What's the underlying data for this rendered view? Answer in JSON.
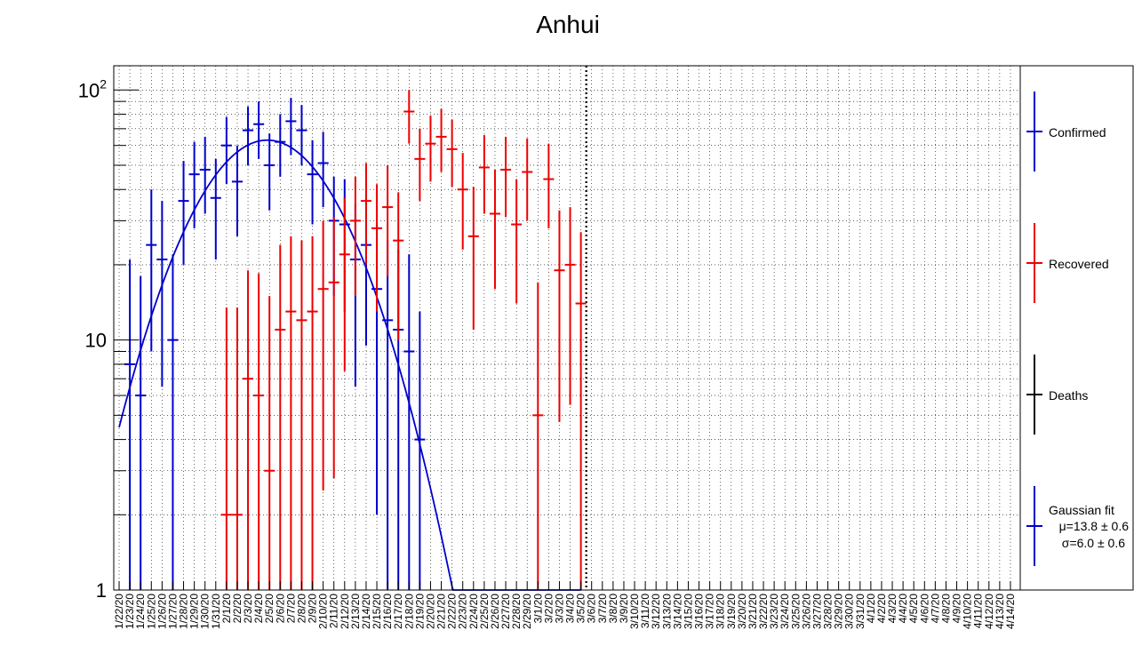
{
  "chart_data": {
    "type": "scatter",
    "title": "Anhui",
    "xlabel": "",
    "ylabel": "",
    "yscale": "log",
    "ylim": [
      1,
      125
    ],
    "y_ticks": [
      1,
      10,
      100
    ],
    "y_tick_labels": [
      "1",
      "10",
      "10^2"
    ],
    "grid": true,
    "legend_position": "right",
    "x_categories": [
      "1/22/20",
      "1/23/20",
      "1/24/20",
      "1/25/20",
      "1/26/20",
      "1/27/20",
      "1/28/20",
      "1/29/20",
      "1/30/20",
      "1/31/20",
      "2/1/20",
      "2/2/20",
      "2/3/20",
      "2/4/20",
      "2/5/20",
      "2/6/20",
      "2/7/20",
      "2/8/20",
      "2/9/20",
      "2/10/20",
      "2/11/20",
      "2/12/20",
      "2/13/20",
      "2/14/20",
      "2/15/20",
      "2/16/20",
      "2/17/20",
      "2/18/20",
      "2/19/20",
      "2/20/20",
      "2/21/20",
      "2/22/20",
      "2/23/20",
      "2/24/20",
      "2/25/20",
      "2/26/20",
      "2/27/20",
      "2/28/20",
      "2/29/20",
      "3/1/20",
      "3/2/20",
      "3/3/20",
      "3/4/20",
      "3/5/20",
      "3/6/20",
      "3/7/20",
      "3/8/20",
      "3/9/20",
      "3/10/20",
      "3/11/20",
      "3/12/20",
      "3/13/20",
      "3/14/20",
      "3/15/20",
      "3/16/20",
      "3/17/20",
      "3/18/20",
      "3/19/20",
      "3/20/20",
      "3/21/20",
      "3/22/20",
      "3/23/20",
      "3/24/20",
      "3/25/20",
      "3/26/20",
      "3/27/20",
      "3/28/20",
      "3/29/20",
      "3/30/20",
      "3/31/20",
      "4/1/20",
      "4/2/20",
      "4/3/20",
      "4/4/20",
      "4/5/20",
      "4/6/20",
      "4/7/20",
      "4/8/20",
      "4/9/20",
      "4/10/20",
      "4/11/20",
      "4/12/20",
      "4/13/20",
      "4/14/20"
    ],
    "cutoff_date": "3/6/20",
    "series": [
      {
        "name": "Confirmed",
        "color": "#0000cc",
        "points": [
          {
            "x": "1/23/20",
            "y": 8,
            "lo": 1,
            "hi": 21
          },
          {
            "x": "1/24/20",
            "y": 6,
            "lo": 1,
            "hi": 18
          },
          {
            "x": "1/25/20",
            "y": 24,
            "lo": 9,
            "hi": 40
          },
          {
            "x": "1/26/20",
            "y": 21,
            "lo": 6.5,
            "hi": 36
          },
          {
            "x": "1/27/20",
            "y": 10,
            "lo": 1,
            "hi": 22
          },
          {
            "x": "1/28/20",
            "y": 36,
            "lo": 20,
            "hi": 52
          },
          {
            "x": "1/29/20",
            "y": 46,
            "lo": 28,
            "hi": 62
          },
          {
            "x": "1/30/20",
            "y": 48,
            "lo": 32,
            "hi": 65
          },
          {
            "x": "1/31/20",
            "y": 37,
            "lo": 21,
            "hi": 53
          },
          {
            "x": "2/1/20",
            "y": 60,
            "lo": 42,
            "hi": 78
          },
          {
            "x": "2/2/20",
            "y": 43,
            "lo": 26,
            "hi": 60
          },
          {
            "x": "2/3/20",
            "y": 69,
            "lo": 50,
            "hi": 86
          },
          {
            "x": "2/4/20",
            "y": 73,
            "lo": 53,
            "hi": 90
          },
          {
            "x": "2/5/20",
            "y": 50,
            "lo": 33,
            "hi": 67
          },
          {
            "x": "2/6/20",
            "y": 62,
            "lo": 45,
            "hi": 80
          },
          {
            "x": "2/7/20",
            "y": 75,
            "lo": 55,
            "hi": 93
          },
          {
            "x": "2/8/20",
            "y": 69,
            "lo": 50,
            "hi": 87
          },
          {
            "x": "2/9/20",
            "y": 46,
            "lo": 29,
            "hi": 63
          },
          {
            "x": "2/10/20",
            "y": 51,
            "lo": 34,
            "hi": 68
          },
          {
            "x": "2/11/20",
            "y": 30,
            "lo": 15,
            "hi": 45
          },
          {
            "x": "2/12/20",
            "y": 29,
            "lo": 13,
            "hi": 44
          },
          {
            "x": "2/13/20",
            "y": 21,
            "lo": 6.5,
            "hi": 35
          },
          {
            "x": "2/14/20",
            "y": 24,
            "lo": 9.5,
            "hi": 38
          },
          {
            "x": "2/15/20",
            "y": 16,
            "lo": 2,
            "hi": 29
          },
          {
            "x": "2/16/20",
            "y": 12,
            "lo": 1,
            "hi": 25
          },
          {
            "x": "2/17/20",
            "y": 11,
            "lo": 1,
            "hi": 23
          },
          {
            "x": "2/18/20",
            "y": 9,
            "lo": 1,
            "hi": 22
          },
          {
            "x": "2/19/20",
            "y": 4,
            "lo": 1,
            "hi": 13
          }
        ]
      },
      {
        "name": "Recovered",
        "color": "#ee0000",
        "points": [
          {
            "x": "2/1/20",
            "y": 2,
            "lo": 1,
            "hi": 13.5
          },
          {
            "x": "2/2/20",
            "y": 2,
            "lo": 1,
            "hi": 13.5
          },
          {
            "x": "2/3/20",
            "y": 7,
            "lo": 1,
            "hi": 19
          },
          {
            "x": "2/4/20",
            "y": 6,
            "lo": 1,
            "hi": 18.5
          },
          {
            "x": "2/5/20",
            "y": 3,
            "lo": 1,
            "hi": 15
          },
          {
            "x": "2/6/20",
            "y": 11,
            "lo": 1,
            "hi": 24
          },
          {
            "x": "2/7/20",
            "y": 13,
            "lo": 1,
            "hi": 26
          },
          {
            "x": "2/8/20",
            "y": 12,
            "lo": 1,
            "hi": 25
          },
          {
            "x": "2/9/20",
            "y": 13,
            "lo": 1,
            "hi": 26
          },
          {
            "x": "2/10/20",
            "y": 16,
            "lo": 2.5,
            "hi": 30
          },
          {
            "x": "2/11/20",
            "y": 17,
            "lo": 2.8,
            "hi": 31
          },
          {
            "x": "2/12/20",
            "y": 22,
            "lo": 7.5,
            "hi": 37
          },
          {
            "x": "2/13/20",
            "y": 30,
            "lo": 15,
            "hi": 45
          },
          {
            "x": "2/14/20",
            "y": 36,
            "lo": 20,
            "hi": 51
          },
          {
            "x": "2/15/20",
            "y": 28,
            "lo": 13,
            "hi": 42
          },
          {
            "x": "2/16/20",
            "y": 34,
            "lo": 18,
            "hi": 50
          },
          {
            "x": "2/17/20",
            "y": 25,
            "lo": 10,
            "hi": 39
          },
          {
            "x": "2/18/20",
            "y": 82,
            "lo": 61,
            "hi": 100
          },
          {
            "x": "2/19/20",
            "y": 53,
            "lo": 36,
            "hi": 70
          },
          {
            "x": "2/20/20",
            "y": 61,
            "lo": 43,
            "hi": 79
          },
          {
            "x": "2/21/20",
            "y": 65,
            "lo": 47,
            "hi": 84
          },
          {
            "x": "2/22/20",
            "y": 58,
            "lo": 41,
            "hi": 76
          },
          {
            "x": "2/23/20",
            "y": 40,
            "lo": 23,
            "hi": 56
          },
          {
            "x": "2/24/20",
            "y": 26,
            "lo": 11,
            "hi": 41
          },
          {
            "x": "2/25/20",
            "y": 49,
            "lo": 32,
            "hi": 66
          },
          {
            "x": "2/26/20",
            "y": 32,
            "lo": 16,
            "hi": 48
          },
          {
            "x": "2/27/20",
            "y": 48,
            "lo": 31,
            "hi": 65
          },
          {
            "x": "2/28/20",
            "y": 29,
            "lo": 14,
            "hi": 44
          },
          {
            "x": "2/29/20",
            "y": 47,
            "lo": 30,
            "hi": 64
          },
          {
            "x": "3/1/20",
            "y": 5,
            "lo": 1,
            "hi": 17
          },
          {
            "x": "3/2/20",
            "y": 44,
            "lo": 28,
            "hi": 61
          },
          {
            "x": "3/3/20",
            "y": 19,
            "lo": 4.7,
            "hi": 33
          },
          {
            "x": "3/4/20",
            "y": 20,
            "lo": 5.5,
            "hi": 34
          },
          {
            "x": "3/5/20",
            "y": 14,
            "lo": 1,
            "hi": 27
          }
        ]
      },
      {
        "name": "Deaths",
        "color": "#000000",
        "points": []
      }
    ],
    "fit": {
      "legend_label": "Gaussian fit",
      "mu_label": "μ=13.8 ± 0.6",
      "sigma_label": "σ=6.0 ± 0.6",
      "color": "#0000cc",
      "amplitude": 63,
      "mu": 13.8,
      "sigma": 6.0,
      "x_from": "1/22/20",
      "x_to": "3/5/20"
    }
  }
}
